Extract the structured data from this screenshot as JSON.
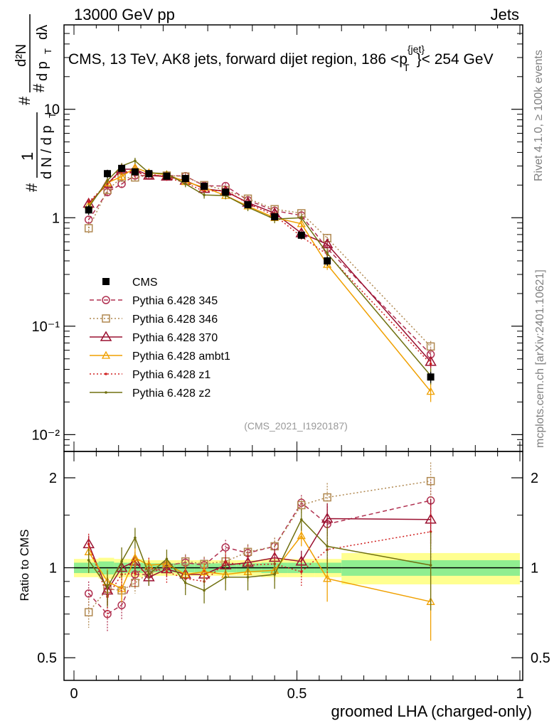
{
  "header": {
    "energy_label": "13000 GeV pp",
    "category_label": "Jets",
    "plot_title": "CMS, 13 TeV, AK8 jets, forward dijet region, 186 <p",
    "plot_title_sup": "{jet}",
    "plot_title_sub": "T",
    "plot_title_tail": "}< 254 GeV",
    "watermark": "(CMS_2021_I1920187)",
    "side_rivet": "Rivet 4.1.0, ≥ 100k events",
    "side_mcplots": "mcplots.cern.ch [arXiv:2401.10621]"
  },
  "upper_ylabel": {
    "hash1": "#",
    "one": "1",
    "dN": "d N / d p",
    "t1": "T",
    "hash2": "#",
    "d2N": "d²N",
    "hash3": "#",
    "dpt": "d p",
    "t2": "T",
    "dlambda": "dλ"
  },
  "colors": {
    "CMS": "#000000",
    "p345": "#b03050",
    "p346": "#b08850",
    "p370": "#9a1030",
    "ambt1": "#f0a000",
    "z1": "#d02020",
    "z2": "#707010",
    "band_inner": "#90ee90",
    "band_outer": "#ffff90"
  },
  "chart_data": [
    {
      "type": "line",
      "scale": "log",
      "ylim": [
        0.007,
        60
      ],
      "xlim": [
        0,
        1
      ],
      "x": [
        0.033,
        0.075,
        0.107,
        0.137,
        0.168,
        0.208,
        0.25,
        0.292,
        0.34,
        0.39,
        0.45,
        0.51,
        0.568,
        0.8
      ],
      "y_ticks": [
        {
          "value": 10,
          "label": "10"
        },
        {
          "value": 1,
          "label": "1"
        },
        {
          "value": 0.1,
          "label": "10⁻¹"
        },
        {
          "value": 0.01,
          "label": "10⁻²"
        }
      ],
      "series": [
        {
          "name": "CMS",
          "values": [
            1.18,
            2.55,
            2.85,
            2.65,
            2.55,
            2.42,
            2.3,
            1.95,
            1.72,
            1.32,
            1.02,
            0.69,
            0.4,
            0.034
          ],
          "errors": [
            0.12,
            0.22,
            0.22,
            0.18,
            0.16,
            0.14,
            0.13,
            0.1,
            0.09,
            0.08,
            0.07,
            0.05,
            0.04,
            0.004
          ]
        },
        {
          "name": "Pythia 6.428 345",
          "values": [
            0.96,
            1.72,
            2.05,
            2.45,
            2.45,
            2.45,
            2.42,
            1.97,
            1.96,
            1.45,
            1.16,
            1.05,
            0.52,
            0.055
          ],
          "errors": [
            0.08,
            0.14,
            0.16,
            0.18,
            0.16,
            0.16,
            0.14,
            0.12,
            0.12,
            0.1,
            0.08,
            0.07,
            0.05,
            0.007
          ]
        },
        {
          "name": "Pythia 6.428 346",
          "values": [
            0.8,
            1.8,
            2.35,
            2.35,
            2.45,
            2.45,
            2.4,
            2.0,
            1.8,
            1.5,
            1.2,
            1.1,
            0.65,
            0.065
          ],
          "errors": [
            0.08,
            0.14,
            0.16,
            0.18,
            0.16,
            0.16,
            0.14,
            0.12,
            0.12,
            0.1,
            0.08,
            0.07,
            0.06,
            0.008
          ]
        },
        {
          "name": "Pythia 6.428 370",
          "values": [
            1.35,
            2.05,
            2.8,
            2.8,
            2.45,
            2.4,
            2.2,
            1.85,
            1.75,
            1.38,
            1.1,
            0.72,
            0.57,
            0.047
          ],
          "errors": [
            0.1,
            0.16,
            0.2,
            0.2,
            0.16,
            0.16,
            0.14,
            0.12,
            0.12,
            0.1,
            0.08,
            0.06,
            0.05,
            0.006
          ]
        },
        {
          "name": "Pythia 6.428 ambt1",
          "values": [
            1.3,
            2.1,
            2.4,
            2.9,
            2.6,
            2.5,
            2.15,
            1.9,
            1.6,
            1.28,
            1.0,
            0.88,
            0.37,
            0.025
          ],
          "errors": [
            0.1,
            0.16,
            0.18,
            0.2,
            0.16,
            0.16,
            0.14,
            0.12,
            0.12,
            0.1,
            0.08,
            0.07,
            0.04,
            0.005
          ]
        },
        {
          "name": "Pythia 6.428 z1",
          "values": [
            1.4,
            2.05,
            2.7,
            2.55,
            2.55,
            2.35,
            2.1,
            1.75,
            1.8,
            1.35,
            1.05,
            0.67,
            0.46,
            0.045
          ],
          "errors": [
            0.1,
            0.16,
            0.2,
            0.2,
            0.16,
            0.16,
            0.14,
            0.12,
            0.12,
            0.1,
            0.08,
            0.06,
            0.05,
            0.006
          ]
        },
        {
          "name": "Pythia 6.428 z2",
          "values": [
            1.25,
            2.2,
            3.0,
            3.35,
            2.6,
            2.55,
            2.05,
            1.62,
            1.6,
            1.25,
            0.97,
            1.0,
            0.47,
            0.035
          ],
          "errors": [
            0.1,
            0.16,
            0.2,
            0.22,
            0.16,
            0.16,
            0.14,
            0.12,
            0.12,
            0.1,
            0.08,
            0.07,
            0.05,
            0.006
          ]
        }
      ],
      "legend": [
        "CMS",
        "Pythia 6.428 345",
        "Pythia 6.428 346",
        "Pythia 6.428 370",
        "Pythia 6.428 ambt1",
        "Pythia 6.428 z1",
        "Pythia 6.428 z2"
      ],
      "legend_position": "center-left"
    },
    {
      "type": "line",
      "scale": "log",
      "ylabel": "Ratio to CMS",
      "xlabel": "groomed LHA (charged-only)",
      "ylim": [
        0.42,
        2.45
      ],
      "xlim": [
        0,
        1
      ],
      "x_ticks": [
        {
          "value": 0,
          "label": "0"
        },
        {
          "value": 0.5,
          "label": "0.5"
        },
        {
          "value": 1,
          "label": "1"
        }
      ],
      "y_ticks": [
        {
          "value": 2,
          "label": "2"
        },
        {
          "value": 1,
          "label": "1"
        },
        {
          "value": 0.5,
          "label": "0.5"
        }
      ],
      "bands": {
        "edges": [
          0,
          0.055,
          0.09,
          0.12,
          0.155,
          0.185,
          0.23,
          0.27,
          0.315,
          0.365,
          0.42,
          0.48,
          0.54,
          0.6,
          1.0
        ],
        "inner": [
          0.04,
          0.05,
          0.04,
          0.04,
          0.035,
          0.035,
          0.035,
          0.035,
          0.035,
          0.035,
          0.04,
          0.04,
          0.04,
          0.06
        ],
        "outer": [
          0.07,
          0.08,
          0.07,
          0.07,
          0.06,
          0.06,
          0.06,
          0.06,
          0.06,
          0.06,
          0.07,
          0.07,
          0.07,
          0.12
        ]
      },
      "x": [
        0.033,
        0.075,
        0.107,
        0.137,
        0.168,
        0.208,
        0.25,
        0.292,
        0.34,
        0.39,
        0.45,
        0.51,
        0.568,
        0.8
      ],
      "series": [
        {
          "name": "Pythia 6.428 345",
          "values": [
            0.82,
            0.7,
            0.75,
            0.95,
            0.95,
            1.02,
            1.04,
            1.02,
            1.17,
            1.12,
            1.18,
            1.65,
            1.4,
            1.68
          ],
          "errors": [
            0.08,
            0.09,
            0.08,
            0.07,
            0.06,
            0.06,
            0.06,
            0.06,
            0.07,
            0.07,
            0.08,
            0.1,
            0.2,
            0.3
          ]
        },
        {
          "name": "Pythia 6.428 346",
          "values": [
            0.71,
            0.85,
            0.84,
            0.89,
            0.96,
            1.01,
            1.05,
            1.03,
            1.05,
            1.13,
            1.18,
            1.62,
            1.72,
            1.95
          ],
          "errors": [
            0.08,
            0.1,
            0.08,
            0.07,
            0.06,
            0.06,
            0.06,
            0.06,
            0.07,
            0.07,
            0.08,
            0.1,
            0.2,
            0.3
          ]
        },
        {
          "name": "Pythia 6.428 370",
          "values": [
            1.2,
            0.84,
            1.0,
            1.05,
            0.93,
            0.99,
            0.95,
            0.95,
            1.02,
            1.04,
            1.08,
            1.05,
            1.46,
            1.45
          ],
          "errors": [
            0.08,
            0.09,
            0.08,
            0.08,
            0.06,
            0.06,
            0.06,
            0.06,
            0.07,
            0.07,
            0.08,
            0.09,
            0.18,
            0.25
          ]
        },
        {
          "name": "Pythia 6.428 ambt1",
          "values": [
            1.13,
            0.9,
            0.85,
            1.08,
            1.02,
            1.03,
            0.95,
            0.97,
            0.95,
            0.97,
            0.98,
            1.28,
            0.92,
            0.77
          ],
          "errors": [
            0.08,
            0.09,
            0.08,
            0.08,
            0.06,
            0.06,
            0.06,
            0.06,
            0.07,
            0.07,
            0.08,
            0.1,
            0.15,
            0.2
          ]
        },
        {
          "name": "Pythia 6.428 z1",
          "values": [
            1.2,
            0.8,
            0.95,
            0.96,
            1.0,
            0.97,
            0.92,
            0.9,
            1.04,
            1.02,
            1.03,
            0.97,
            1.15,
            1.32
          ],
          "errors": [
            0.1,
            0.12,
            0.12,
            0.1,
            0.08,
            0.08,
            0.08,
            0.08,
            0.09,
            0.09,
            0.1,
            0.1,
            0.2,
            0.3
          ]
        },
        {
          "name": "Pythia 6.428 z2",
          "values": [
            1.06,
            0.86,
            1.05,
            1.26,
            0.95,
            1.07,
            0.89,
            0.84,
            0.93,
            0.93,
            0.95,
            1.45,
            1.18,
            1.02
          ],
          "errors": [
            0.1,
            0.12,
            0.12,
            0.1,
            0.08,
            0.08,
            0.08,
            0.08,
            0.09,
            0.09,
            0.1,
            0.12,
            0.2,
            0.3
          ]
        }
      ]
    }
  ]
}
